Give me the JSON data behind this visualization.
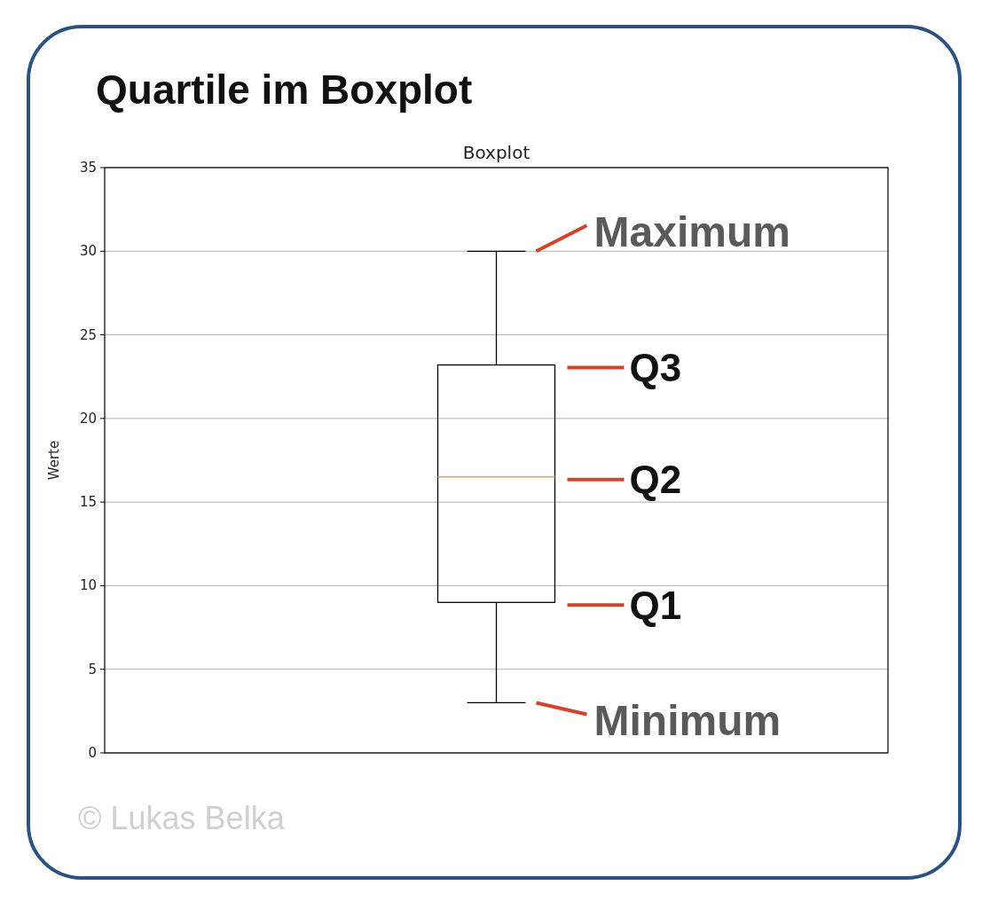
{
  "chart_data": {
    "type": "box",
    "title": "Quartile im Boxplot",
    "subtitle": "Boxplot",
    "ylabel": "Werte",
    "categories": [
      null
    ],
    "boxes": [
      {
        "low": 3,
        "q1": 9,
        "median": 16.5,
        "q3": 23.2,
        "high": 30
      }
    ],
    "color": "#000000",
    "ylim": [
      0,
      35
    ],
    "yticks": [
      0,
      5,
      10,
      15,
      20,
      25,
      30,
      35
    ],
    "grid": "y",
    "tick_labels": "y",
    "annotations": [
      "Maximum",
      "Q3",
      "Q2",
      "Q1",
      "Minimum",
      "© Lukas Belka"
    ]
  }
}
